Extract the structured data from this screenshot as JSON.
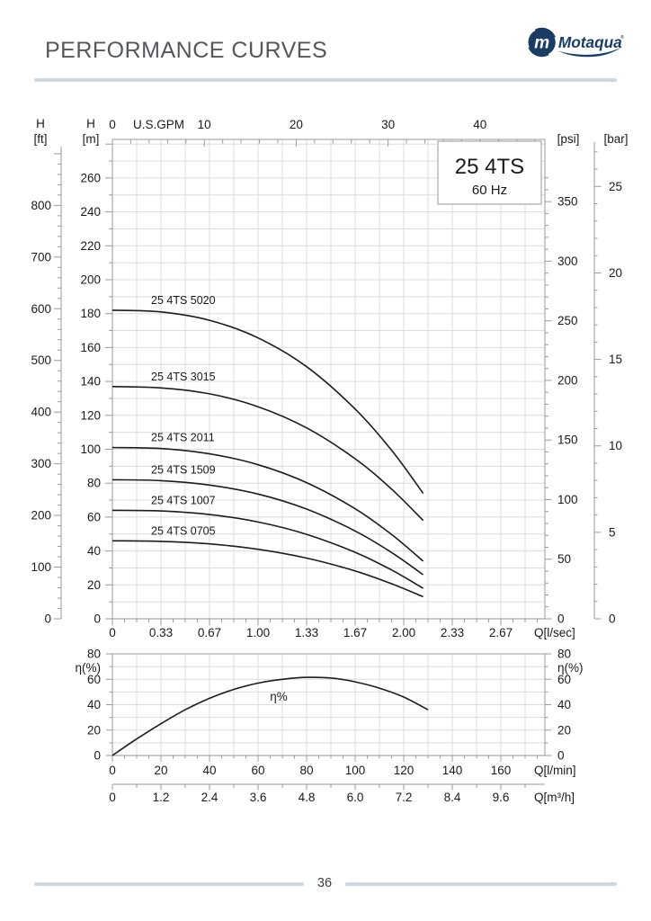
{
  "header": {
    "title": "PERFORMANCE CURVES",
    "logo_text": "Motaqua",
    "logo_reg": "®",
    "logo_mark_letter": "m"
  },
  "footer": {
    "page_number": "36"
  },
  "colors": {
    "navy": "#1b3c63",
    "rule": "#cdd7e1",
    "grid": "#dcdcdc",
    "axis": "#9a9a9a",
    "curve": "#1c1c1c",
    "text": "#1a1a1a",
    "title_text": "#54585c"
  },
  "chart_data": [
    {
      "type": "line",
      "id": "head-capacity",
      "title": "25 4TS",
      "subtitle": "60 Hz",
      "x_axes": {
        "gpm": {
          "label": "U.S.GPM",
          "ticks": [
            0,
            10,
            20,
            30,
            40
          ],
          "minor_step": 2,
          "minor_max": 46
        },
        "lsec": {
          "label": "Q[l/sec]",
          "tick_labels": [
            "0",
            "0.33",
            "0.67",
            "1.00",
            "1.33",
            "1.67",
            "2.00",
            "2.33",
            "2.67"
          ]
        }
      },
      "y_axes": {
        "m": {
          "name": "H",
          "unit": "[m]",
          "min": 0,
          "max": 260,
          "step": 20,
          "grid_step": 10
        },
        "ft": {
          "name": "H",
          "unit": "[ft]",
          "min": 0,
          "max": 800,
          "step": 100,
          "minor_step": 20
        },
        "psi": {
          "unit": "[psi]",
          "min": 0,
          "max": 350,
          "step": 50,
          "minor_step": 10
        },
        "bar": {
          "unit": "[bar]",
          "min": 0,
          "max": 25,
          "step": 5,
          "minor_step": 1
        }
      },
      "series": [
        {
          "name": "25 4TS 5020",
          "q_lmin": [
            0,
            20,
            40,
            60,
            80,
            100,
            115,
            128
          ],
          "h_m": [
            182,
            181,
            176.1,
            165.7,
            148.7,
            123.7,
            99.4,
            74
          ]
        },
        {
          "name": "25 4TS 3015",
          "q_lmin": [
            0,
            20,
            40,
            60,
            80,
            100,
            115,
            128
          ],
          "h_m": [
            137,
            136.2,
            132.7,
            125.1,
            112.6,
            94.4,
            76.5,
            58
          ]
        },
        {
          "name": "25 4TS 2011",
          "q_lmin": [
            0,
            20,
            40,
            60,
            80,
            100,
            115,
            128
          ],
          "h_m": [
            101,
            100.4,
            97.3,
            90.9,
            80.3,
            64.9,
            49.7,
            34
          ]
        },
        {
          "name": "25 4TS 1509",
          "q_lmin": [
            0,
            20,
            40,
            60,
            80,
            100,
            115,
            128
          ],
          "h_m": [
            82,
            81.5,
            78.9,
            73.6,
            64.7,
            51.8,
            39.1,
            26
          ]
        },
        {
          "name": "25 4TS 1007",
          "q_lmin": [
            0,
            20,
            40,
            60,
            80,
            100,
            115,
            128
          ],
          "h_m": [
            64,
            63.6,
            61.5,
            57.1,
            49.8,
            39.2,
            28.8,
            18
          ]
        },
        {
          "name": "25 4TS 0705",
          "q_lmin": [
            0,
            20,
            40,
            60,
            80,
            100,
            115,
            128
          ],
          "h_m": [
            46,
            45.7,
            44.2,
            41,
            35.8,
            28.2,
            20.7,
            13
          ]
        }
      ]
    },
    {
      "type": "line",
      "id": "efficiency",
      "y_axis": {
        "label": "η(%)",
        "min": 0,
        "max": 80,
        "step": 20,
        "grid_step": 10
      },
      "x_axes": {
        "lmin": {
          "label": "Q[l/min]",
          "ticks": [
            0,
            20,
            40,
            60,
            80,
            100,
            120,
            140,
            160
          ],
          "minor_step": 5
        },
        "m3h": {
          "label": "Q[m³/h]",
          "tick_labels": [
            "0",
            "1.2",
            "2.4",
            "3.6",
            "4.8",
            "6.0",
            "7.2",
            "8.4",
            "9.6"
          ]
        }
      },
      "annotation": "η%",
      "series": [
        {
          "name": "η%",
          "q_lmin": [
            0,
            10,
            20,
            30,
            40,
            50,
            60,
            70,
            80,
            90,
            100,
            110,
            120,
            130
          ],
          "eta": [
            0,
            13,
            25,
            36,
            45,
            52,
            57,
            60,
            61.5,
            61,
            58,
            53,
            46,
            36
          ]
        }
      ]
    }
  ]
}
